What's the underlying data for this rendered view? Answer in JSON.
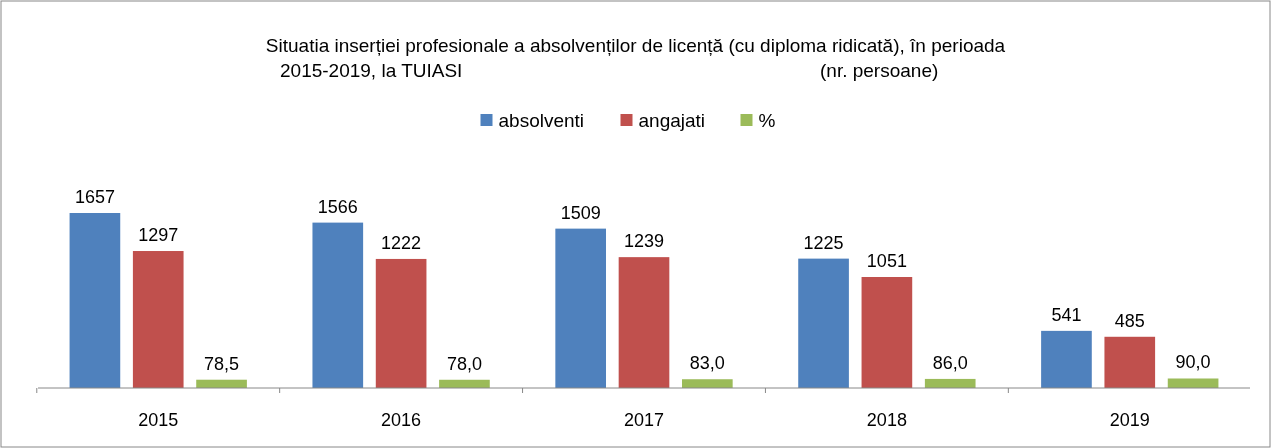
{
  "chart_data": {
    "type": "bar",
    "title": "Situatia inserției profesionale a absolvenților de licență (cu diploma ridicată), în perioada 2015-2019, la TUIASI",
    "subtitle": "(nr. persoane)",
    "categories": [
      "2015",
      "2016",
      "2017",
      "2018",
      "2019"
    ],
    "series": [
      {
        "name": "absolventi",
        "color": "#4f81bd",
        "values": [
          1657,
          1566,
          1509,
          1225,
          541
        ],
        "value_labels": [
          "1657",
          "1566",
          "1509",
          "1225",
          "541"
        ]
      },
      {
        "name": "angajati",
        "color": "#c0504d",
        "values": [
          1297,
          1222,
          1239,
          1051,
          485
        ],
        "value_labels": [
          "1297",
          "1222",
          "1239",
          "1051",
          "485"
        ]
      },
      {
        "name": "%",
        "color": "#9bbb59",
        "values": [
          78.5,
          78.0,
          83.0,
          86.0,
          90.0
        ],
        "value_labels": [
          "78,5",
          "78,0",
          "83,0",
          "86,0",
          "90,0"
        ]
      }
    ],
    "tick_labels": "x",
    "legend": "top",
    "grid": false
  }
}
